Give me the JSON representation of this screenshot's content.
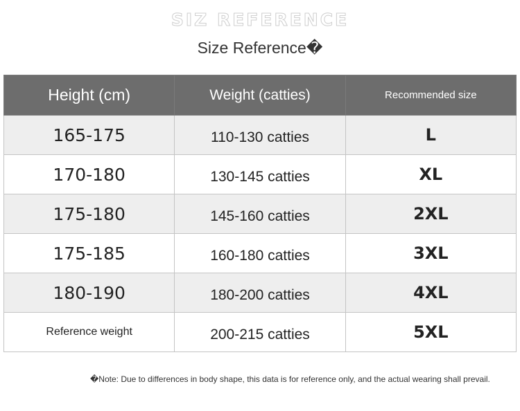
{
  "banner": "SIZ REFERENCE",
  "subtitle": "Size Reference�",
  "table": {
    "headers": [
      "Height (cm)",
      "Weight (catties)",
      "Recommended size"
    ],
    "rows": [
      {
        "height": "165-175",
        "weight": "110-130 catties",
        "size": "L"
      },
      {
        "height": "170-180",
        "weight": "130-145 catties",
        "size": "XL"
      },
      {
        "height": "175-180",
        "weight": "145-160 catties",
        "size": "2XL"
      },
      {
        "height": "175-185",
        "weight": "160-180 catties",
        "size": "3XL"
      },
      {
        "height": "180-190",
        "weight": "180-200 catties",
        "size": "4XL"
      },
      {
        "height": "Reference weight",
        "weight": "200-215 catties",
        "size": "5XL"
      }
    ]
  },
  "note": "�Note: Due to differences in body shape, this data is for reference only, and the actual wearing shall prevail."
}
